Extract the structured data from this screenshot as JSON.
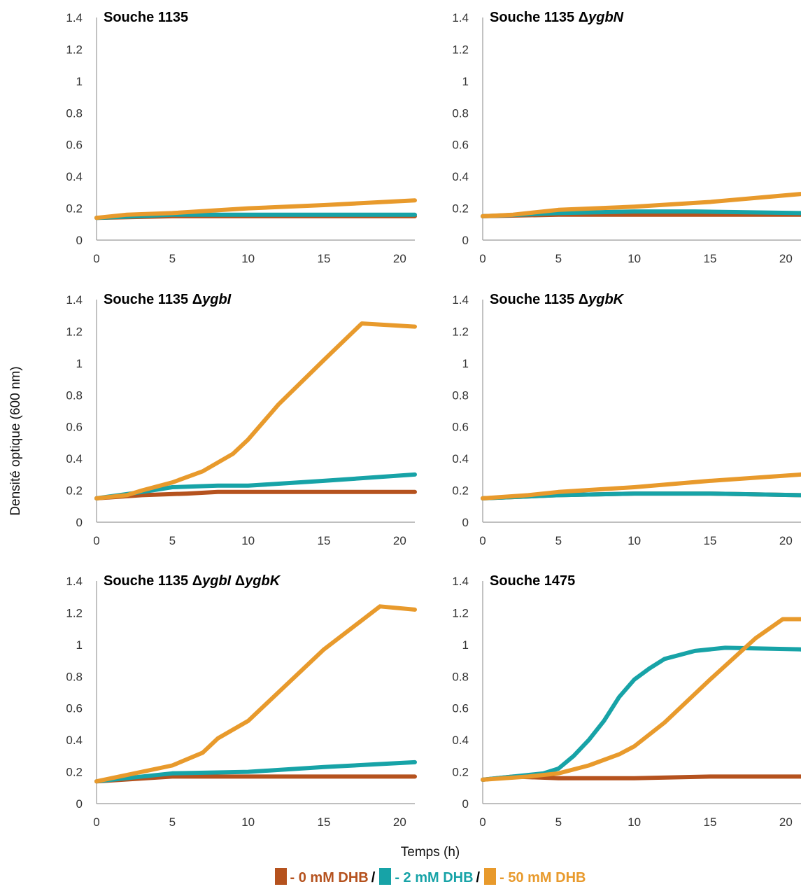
{
  "chart_data": {
    "type": "line",
    "ylabel": "Densité optique (600 nm)",
    "xlabel": "Temps (h)",
    "xlim": [
      0,
      21
    ],
    "ylim": [
      0,
      1.4
    ],
    "x_ticks": [
      "0",
      "5",
      "10",
      "15",
      "20"
    ],
    "y_ticks": [
      "0",
      "0.2",
      "0.4",
      "0.6",
      "0.8",
      "1",
      "1.2",
      "1.4"
    ],
    "grid": false,
    "series_colors": {
      "0 mM": "#b5521e",
      "2 mM": "#17a3a7",
      "50 mM": "#e89a2c"
    },
    "legend": {
      "position": "bottom",
      "items": [
        {
          "label": "- 0 mM DHB",
          "color": "#b5521e"
        },
        {
          "label": "- 2 mM DHB",
          "color": "#17a3a7"
        },
        {
          "label": "- 50 mM DHB",
          "color": "#e89a2c"
        }
      ],
      "separator": "/"
    },
    "panels": [
      {
        "title_parts": [
          {
            "text": "Souche 1135",
            "italic": false
          }
        ],
        "series": [
          {
            "color_key": "0 mM",
            "x": [
              0,
              5,
              10,
              15,
              21
            ],
            "y": [
              0.14,
              0.15,
              0.15,
              0.15,
              0.15
            ]
          },
          {
            "color_key": "2 mM",
            "x": [
              0,
              5,
              10,
              15,
              21
            ],
            "y": [
              0.14,
              0.16,
              0.16,
              0.16,
              0.16
            ]
          },
          {
            "color_key": "50 mM",
            "x": [
              0,
              2,
              5,
              10,
              15,
              21
            ],
            "y": [
              0.14,
              0.16,
              0.17,
              0.2,
              0.22,
              0.25
            ]
          }
        ]
      },
      {
        "title_parts": [
          {
            "text": "Souche 1135 Δ",
            "italic": false
          },
          {
            "text": "ygbN",
            "italic": true
          }
        ],
        "series": [
          {
            "color_key": "0 mM",
            "x": [
              0,
              5,
              10,
              15,
              21
            ],
            "y": [
              0.15,
              0.16,
              0.16,
              0.16,
              0.16
            ]
          },
          {
            "color_key": "2 mM",
            "x": [
              0,
              5,
              10,
              14,
              21
            ],
            "y": [
              0.15,
              0.17,
              0.18,
              0.18,
              0.17
            ]
          },
          {
            "color_key": "50 mM",
            "x": [
              0,
              2,
              5,
              10,
              15,
              21
            ],
            "y": [
              0.15,
              0.16,
              0.19,
              0.21,
              0.24,
              0.29
            ]
          }
        ]
      },
      {
        "title_parts": [
          {
            "text": "Souche 1135 Δ",
            "italic": false
          },
          {
            "text": "ygbI",
            "italic": true
          }
        ],
        "series": [
          {
            "color_key": "0 mM",
            "x": [
              0,
              3,
              6,
              8,
              10,
              21
            ],
            "y": [
              0.15,
              0.17,
              0.18,
              0.19,
              0.19,
              0.19
            ]
          },
          {
            "color_key": "2 mM",
            "x": [
              0,
              3,
              5,
              8,
              10,
              15,
              21
            ],
            "y": [
              0.15,
              0.19,
              0.22,
              0.23,
              0.23,
              0.26,
              0.3
            ]
          },
          {
            "color_key": "50 mM",
            "x": [
              0,
              2,
              3,
              5,
              7,
              9,
              10,
              12,
              15,
              17.5,
              21
            ],
            "y": [
              0.15,
              0.17,
              0.2,
              0.25,
              0.32,
              0.43,
              0.52,
              0.74,
              1.02,
              1.25,
              1.23
            ]
          }
        ]
      },
      {
        "title_parts": [
          {
            "text": "Souche 1135 Δ",
            "italic": false
          },
          {
            "text": "ygbK",
            "italic": true
          }
        ],
        "series": [
          {
            "color_key": "0 mM",
            "x": [
              0,
              5,
              10,
              15,
              21
            ],
            "y": [
              0.15,
              0.17,
              0.18,
              0.18,
              0.17
            ]
          },
          {
            "color_key": "2 mM",
            "x": [
              0,
              5,
              10,
              15,
              21
            ],
            "y": [
              0.15,
              0.17,
              0.18,
              0.18,
              0.17
            ]
          },
          {
            "color_key": "50 mM",
            "x": [
              0,
              3,
              5,
              10,
              15,
              21
            ],
            "y": [
              0.15,
              0.17,
              0.19,
              0.22,
              0.26,
              0.3
            ]
          }
        ]
      },
      {
        "title_parts": [
          {
            "text": "Souche 1135 Δ",
            "italic": false
          },
          {
            "text": "ygbI",
            "italic": true
          },
          {
            "text": " Δ",
            "italic": false
          },
          {
            "text": "ygbK",
            "italic": true
          }
        ],
        "series": [
          {
            "color_key": "0 mM",
            "x": [
              0,
              5,
              10,
              15,
              21
            ],
            "y": [
              0.14,
              0.17,
              0.17,
              0.17,
              0.17
            ]
          },
          {
            "color_key": "2 mM",
            "x": [
              0,
              5,
              10,
              15,
              21
            ],
            "y": [
              0.14,
              0.19,
              0.2,
              0.23,
              0.26
            ]
          },
          {
            "color_key": "50 mM",
            "x": [
              0,
              3,
              5,
              7,
              8,
              10,
              15,
              18.7,
              21
            ],
            "y": [
              0.14,
              0.2,
              0.24,
              0.32,
              0.41,
              0.52,
              0.97,
              1.24,
              1.22
            ]
          }
        ]
      },
      {
        "title_parts": [
          {
            "text": "Souche 1475",
            "italic": false
          }
        ],
        "series": [
          {
            "color_key": "0 mM",
            "x": [
              0,
              2,
              5,
              10,
              15,
              21
            ],
            "y": [
              0.15,
              0.17,
              0.16,
              0.16,
              0.17,
              0.17
            ]
          },
          {
            "color_key": "2 mM",
            "x": [
              0,
              2,
              4,
              5,
              6,
              7,
              8,
              9,
              10,
              11,
              12,
              14,
              16,
              21
            ],
            "y": [
              0.15,
              0.17,
              0.19,
              0.22,
              0.3,
              0.4,
              0.52,
              0.67,
              0.78,
              0.85,
              0.91,
              0.96,
              0.98,
              0.97
            ]
          },
          {
            "color_key": "50 mM",
            "x": [
              0,
              3,
              5,
              7,
              9,
              10,
              12,
              15,
              18,
              19.8,
              21
            ],
            "y": [
              0.15,
              0.17,
              0.19,
              0.24,
              0.31,
              0.36,
              0.51,
              0.78,
              1.04,
              1.16,
              1.16
            ]
          }
        ]
      }
    ]
  }
}
